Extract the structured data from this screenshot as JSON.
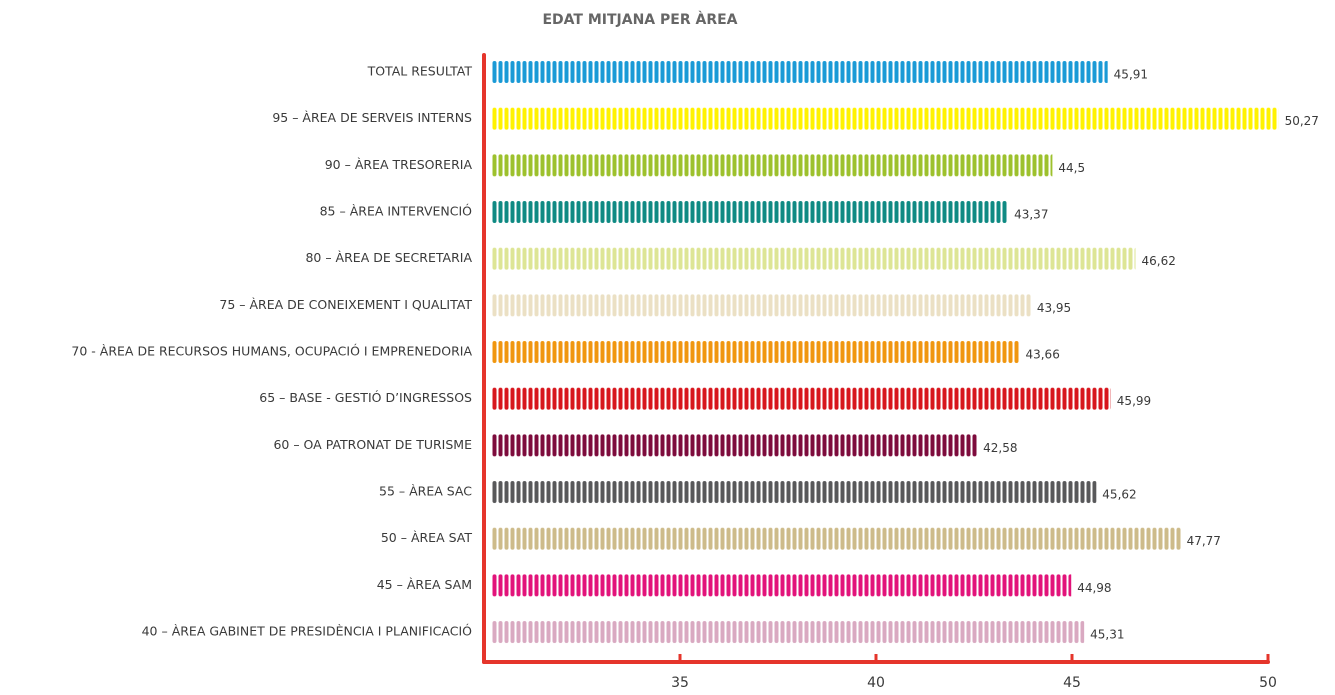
{
  "chart_data": {
    "type": "bar",
    "orientation": "horizontal",
    "title": "EDAT MITJANA PER ÀREA",
    "categories": [
      "TOTAL RESULTAT",
      "95 – ÀREA DE SERVEIS INTERNS",
      "90 – ÀREA TRESORERIA",
      "85 – ÀREA INTERVENCIÓ",
      "80 – ÀREA DE SECRETARIA",
      "75 – ÀREA DE CONEIXEMENT I QUALITAT",
      "70 - ÀREA DE RECURSOS HUMANS, OCUPACIÓ I EMPRENEDORIA",
      "65 – BASE - GESTIÓ D’INGRESSOS",
      "60 – OA PATRONAT DE TURISME",
      "55 – ÀREA SAC",
      "50 – ÀREA SAT",
      "45 – ÀREA SAM",
      "40 – ÀREA GABINET DE PRESIDÈNCIA I PLANIFICACIÓ"
    ],
    "values": [
      45.91,
      50.27,
      44.5,
      43.37,
      46.62,
      43.95,
      43.66,
      45.99,
      42.58,
      45.62,
      47.77,
      44.98,
      45.31
    ],
    "value_labels": [
      "45,91",
      "50,27",
      "44,5",
      "43,37",
      "46,62",
      "43,95",
      "43,66",
      "45,99",
      "42,58",
      "45,62",
      "47,77",
      "44,98",
      "45,31"
    ],
    "colors": [
      "#1a9ad6",
      "#fff200",
      "#9dc12d",
      "#0f8a83",
      "#dde595",
      "#ebe0c4",
      "#f0960f",
      "#d7161d",
      "#7d0b3c",
      "#58585a",
      "#cdbb8a",
      "#e2137a",
      "#d9a9c1"
    ],
    "axis_color": "#e5352b",
    "xlim": [
      30,
      50
    ],
    "xticks": [
      35,
      40,
      45,
      50
    ]
  }
}
